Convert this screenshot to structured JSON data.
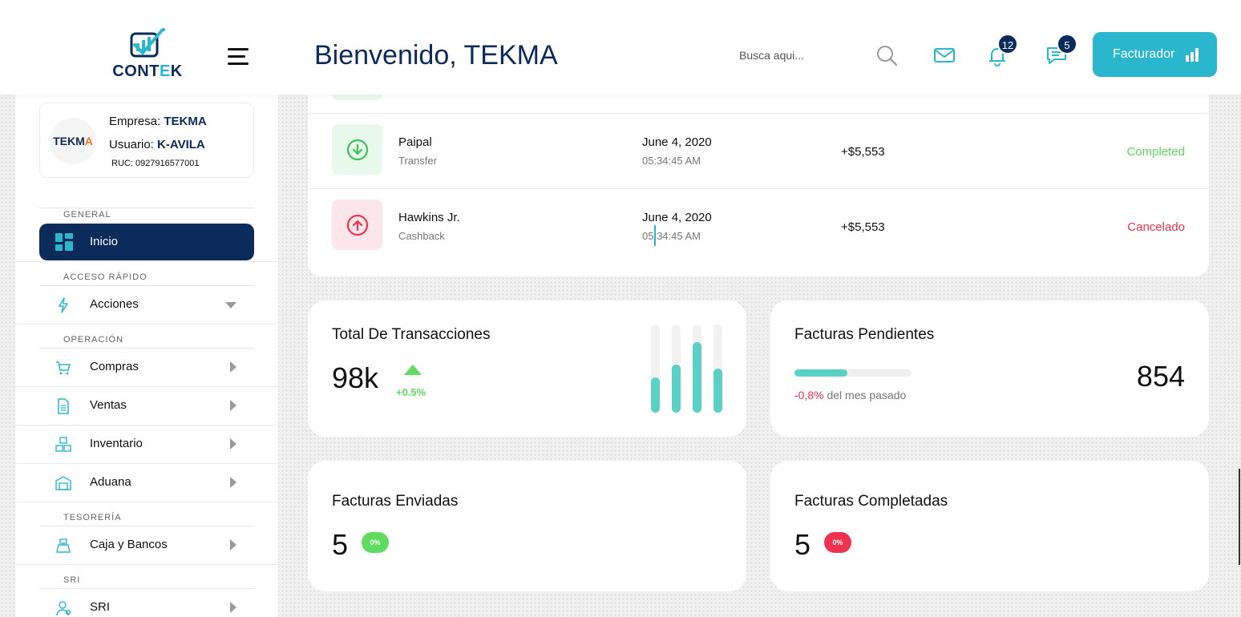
{
  "header": {
    "logo_text_a": "CONT",
    "logo_text_b": "E",
    "logo_text_c": "K",
    "welcome": "Bienvenido, TEKMA",
    "search_placeholder": "Busca aqui...",
    "notifications_count": "12",
    "messages_count": "5",
    "facturador_label": "Facturador"
  },
  "sidebar": {
    "company_logo_a": "TEKM",
    "company_logo_b": "A",
    "empresa_label": "Empresa:",
    "empresa_value": "TEKMA",
    "usuario_label": "Usuario:",
    "usuario_value": "K-AVILA",
    "ruc": "RUC: 0927916577001",
    "sections": {
      "general": "GENERAL",
      "acceso": "ACCESO RÁPIDO",
      "operacion": "OPERACIÓN",
      "tesoreria": "TESORERÍA",
      "sri": "SRI"
    },
    "items": {
      "inicio": "Inicio",
      "acciones": "Acciones",
      "compras": "Compras",
      "ventas": "Ventas",
      "inventario": "Inventario",
      "aduana": "Aduana",
      "caja": "Caja y Bancos",
      "sri": "SRI"
    }
  },
  "transactions": [
    {
      "name": "Paipal",
      "type": "Transfer",
      "date": "June 4, 2020",
      "time": "05:34:45 AM",
      "amount": "+$5,553",
      "status": "Completed",
      "status_color": "#5cd65c",
      "direction": "in"
    },
    {
      "name": "Hawkins Jr.",
      "type": "Cashback",
      "date": "June 4, 2020",
      "time": "05:34:45 AM",
      "amount": "+$5,553",
      "status": "Cancelado",
      "status_color": "#f0324e",
      "direction": "out"
    }
  ],
  "stats": {
    "total": {
      "title": "Total De Transacciones",
      "value": "98k",
      "change": "+0.5%",
      "bars": [
        0.4,
        0.55,
        0.8,
        0.5
      ]
    },
    "pendientes": {
      "title": "Facturas Pendientes",
      "value": "854",
      "progress": 0.45,
      "change": "-0,8%",
      "change_suffix": "del mes pasado"
    },
    "enviadas": {
      "title": "Facturas Enviadas",
      "value": "5",
      "pill": "0%",
      "pill_color": "#5fdc5f"
    },
    "completadas": {
      "title": "Facturas Completadas",
      "value": "5",
      "pill": "0%",
      "pill_color": "#f0324e"
    }
  },
  "colors": {
    "brand_navy": "#0b2b5a",
    "accent_teal": "#2ab7cd",
    "bar_teal": "#5bd0c6"
  }
}
